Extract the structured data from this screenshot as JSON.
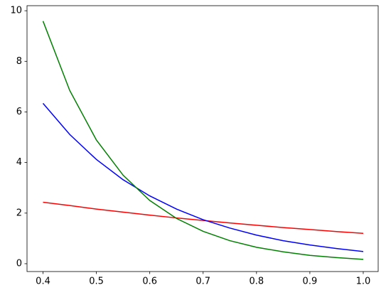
{
  "chart_data": {
    "type": "line",
    "x": [
      0.4,
      0.45,
      0.5,
      0.55,
      0.6,
      0.65,
      0.7,
      0.75,
      0.8,
      0.85,
      0.9,
      0.95,
      1.0
    ],
    "series": [
      {
        "color": "#ff0000",
        "values": [
          2.43,
          2.3,
          2.16,
          2.04,
          1.92,
          1.81,
          1.71,
          1.61,
          1.52,
          1.43,
          1.35,
          1.27,
          1.2
        ]
      },
      {
        "color": "#0000ff",
        "values": [
          6.34,
          5.11,
          4.12,
          3.32,
          2.68,
          2.16,
          1.74,
          1.41,
          1.13,
          0.91,
          0.74,
          0.6,
          0.48
        ]
      },
      {
        "color": "#008000",
        "values": [
          9.59,
          6.85,
          4.89,
          3.5,
          2.5,
          1.79,
          1.28,
          0.91,
          0.65,
          0.47,
          0.33,
          0.24,
          0.17
        ]
      }
    ],
    "xlim": [
      0.37,
      1.028
    ],
    "ylim": [
      -0.31,
      10.2
    ],
    "xticks": [
      0.4,
      0.5,
      0.6,
      0.7,
      0.8,
      0.9,
      {
        "value": 1,
        "label": "1.0"
      }
    ],
    "yticks": [
      0,
      2,
      4,
      6,
      8,
      10
    ],
    "grid": false
  }
}
